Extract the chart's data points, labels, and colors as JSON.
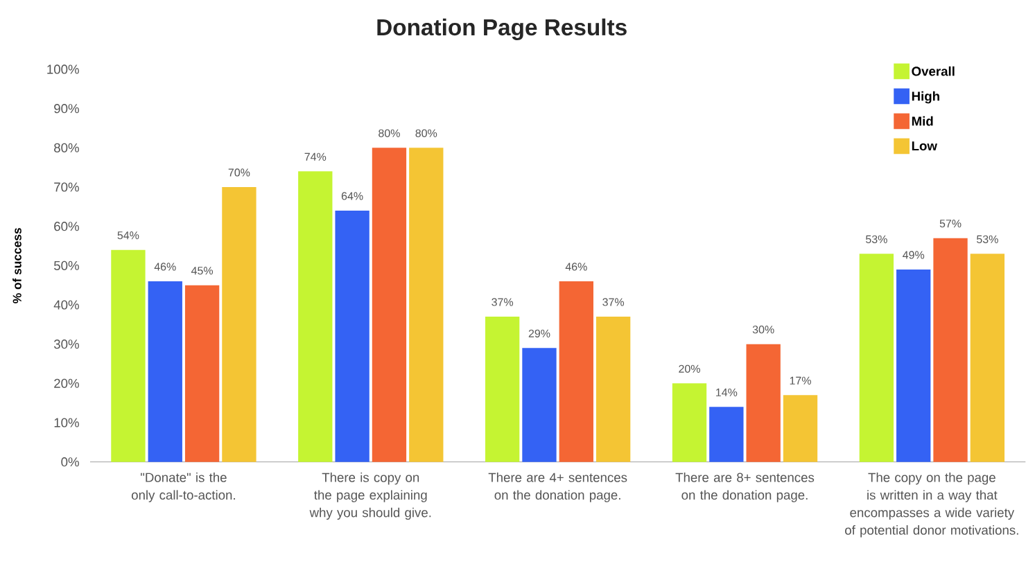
{
  "chart_data": {
    "type": "bar",
    "title": "Donation Page Results",
    "ylabel": "% of success",
    "categories": [
      "\"Donate\" is the only call-to-action.",
      "There is copy on the page explaining why you should give.",
      "There are 4+ sentences on the donation page.",
      "There are 8+ sentences on the donation page.",
      "The copy on the page is written in a way that encompasses a wide variety of potential donor motivations."
    ],
    "series": [
      {
        "name": "Overall",
        "color": "#c5f432",
        "values": [
          54,
          74,
          37,
          20,
          53
        ],
        "value_labels": [
          "54%",
          "74%",
          "37%",
          "20%",
          "53%"
        ]
      },
      {
        "name": "High",
        "color": "#3462f4",
        "values": [
          46,
          64,
          29,
          14,
          49
        ],
        "value_labels": [
          "46%",
          "64%",
          "29%",
          "14%",
          "49%"
        ]
      },
      {
        "name": "Mid",
        "color": "#f46634",
        "values": [
          45,
          80,
          46,
          30,
          57
        ],
        "value_labels": [
          "45%",
          "80%",
          "46%",
          "30%",
          "57%"
        ]
      },
      {
        "name": "Low",
        "color": "#f4c534",
        "values": [
          70,
          80,
          37,
          17,
          53
        ],
        "value_labels": [
          "70%",
          "80%",
          "37%",
          "17%",
          "53%"
        ]
      }
    ],
    "ylim": [
      0,
      100
    ],
    "yticks": [
      {
        "value": 0,
        "label": "0%"
      },
      {
        "value": 10,
        "label": "10%"
      },
      {
        "value": 20,
        "label": "20%"
      },
      {
        "value": 30,
        "label": "30%"
      },
      {
        "value": 40,
        "label": "40%"
      },
      {
        "value": 50,
        "label": "50%"
      },
      {
        "value": 60,
        "label": "60%"
      },
      {
        "value": 70,
        "label": "70%"
      },
      {
        "value": 80,
        "label": "80%"
      },
      {
        "value": 90,
        "label": "90%"
      },
      {
        "value": 100,
        "label": "100%"
      }
    ],
    "legend": "top right",
    "grid": false
  }
}
